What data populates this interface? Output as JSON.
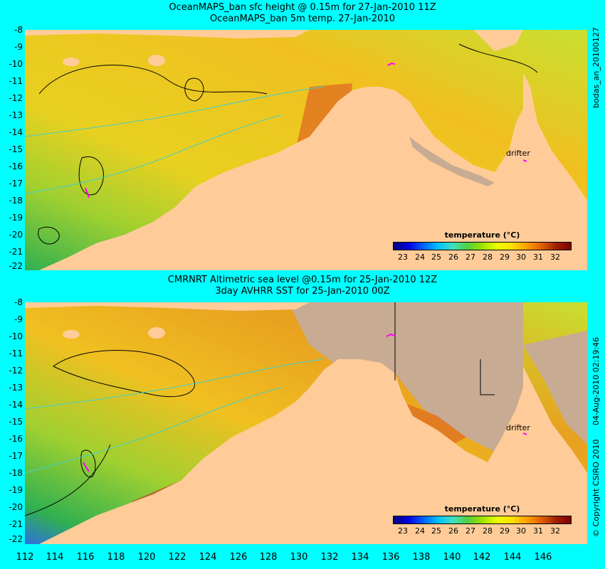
{
  "top_panel": {
    "title_line1": "OceanMAPS_ban sfc height @ 0.15m for 27-Jan-2010 11Z",
    "title_line2": "OceanMAPS_ban 5m temp. 27-Jan-2010",
    "side_label": "bodas_an_20100127",
    "drifter_label": "drifter"
  },
  "bottom_panel": {
    "title_line1": "CMRNRT Altimetric sea level  @0.15m  for 25-Jan-2010 12Z",
    "title_line2": "3day AVHRR SST for 25-Jan-2010 00Z",
    "side_label_date": "04-Aug-2010 02:19:46",
    "side_label_copyright": "© Copyright CSIRO 2010",
    "drifter_label": "drifter"
  },
  "legend": {
    "title": "temperature (°C)",
    "ticks": [
      "23",
      "24",
      "25",
      "26",
      "27",
      "28",
      "29",
      "30",
      "31",
      "32"
    ]
  },
  "lat_labels": [
    "-8",
    "-9",
    "-10",
    "-11",
    "-12",
    "-13",
    "-14",
    "-15",
    "-16",
    "-17",
    "-18",
    "-19",
    "-20",
    "-21",
    "-22"
  ],
  "lon_labels": [
    "112",
    "114",
    "116",
    "118",
    "120",
    "122",
    "124",
    "126",
    "128",
    "130",
    "132",
    "134",
    "136",
    "138",
    "140",
    "142",
    "144",
    "146"
  ],
  "colors": {
    "background": "#00ffff",
    "land": "#ffcc99",
    "no_data": "#c8ab93",
    "sea_warm": "#f2c020",
    "sea_cool": "#40c040",
    "contour": "#40d0d0",
    "drifter": "#ff00ff"
  }
}
